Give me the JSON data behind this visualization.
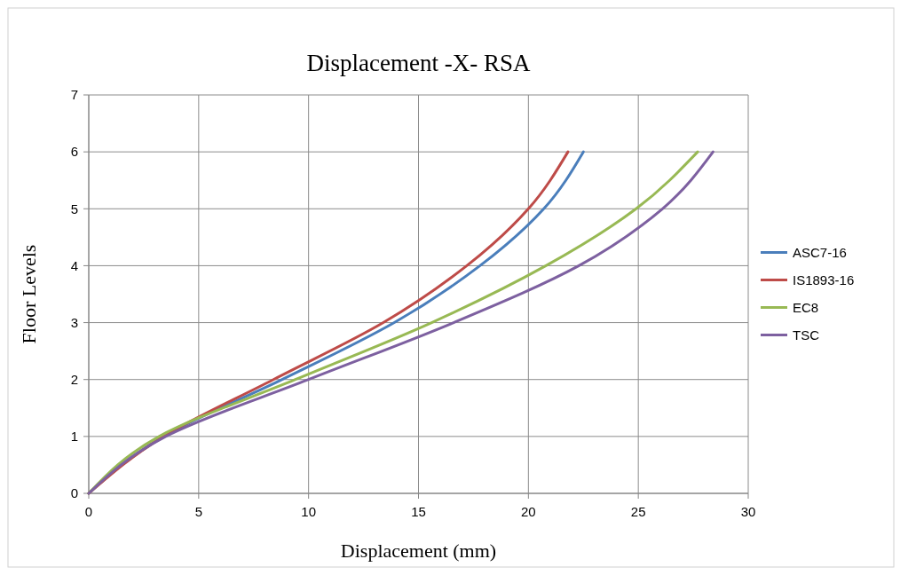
{
  "chart_data": {
    "type": "line",
    "title": "Displacement -X- RSA",
    "xlabel": "Displacement (mm)",
    "ylabel": "Floor Levels",
    "xlim": [
      0,
      30
    ],
    "xticks": [
      0,
      5,
      10,
      15,
      20,
      25,
      30
    ],
    "ylim": [
      0,
      7
    ],
    "yticks": [
      0,
      1,
      2,
      3,
      4,
      5,
      6,
      7
    ],
    "grid": true,
    "legend": "right",
    "marker": "none",
    "series": [
      {
        "name": "ASC7-16",
        "color": "#4a7ebb",
        "x": [
          0,
          3.4,
          8.8,
          13.9,
          17.8,
          20.7,
          22.5
        ],
        "values": [
          0,
          1,
          2,
          3,
          4,
          5,
          6
        ]
      },
      {
        "name": "IS1893-16",
        "color": "#be4b48",
        "x": [
          0,
          3.4,
          8.4,
          13.4,
          17.2,
          20.0,
          21.8
        ],
        "values": [
          0,
          1,
          2,
          3,
          4,
          5,
          6
        ]
      },
      {
        "name": "EC8",
        "color": "#98b954",
        "x": [
          0,
          3.2,
          9.4,
          15.6,
          20.8,
          24.9,
          27.7
        ],
        "values": [
          0,
          1,
          2,
          3,
          4,
          5,
          6
        ]
      },
      {
        "name": "TSC",
        "color": "#7d60a0",
        "x": [
          0,
          3.5,
          10.0,
          16.6,
          22.3,
          26.1,
          28.4
        ],
        "values": [
          0,
          1,
          2,
          3,
          4,
          5,
          6
        ]
      }
    ]
  }
}
